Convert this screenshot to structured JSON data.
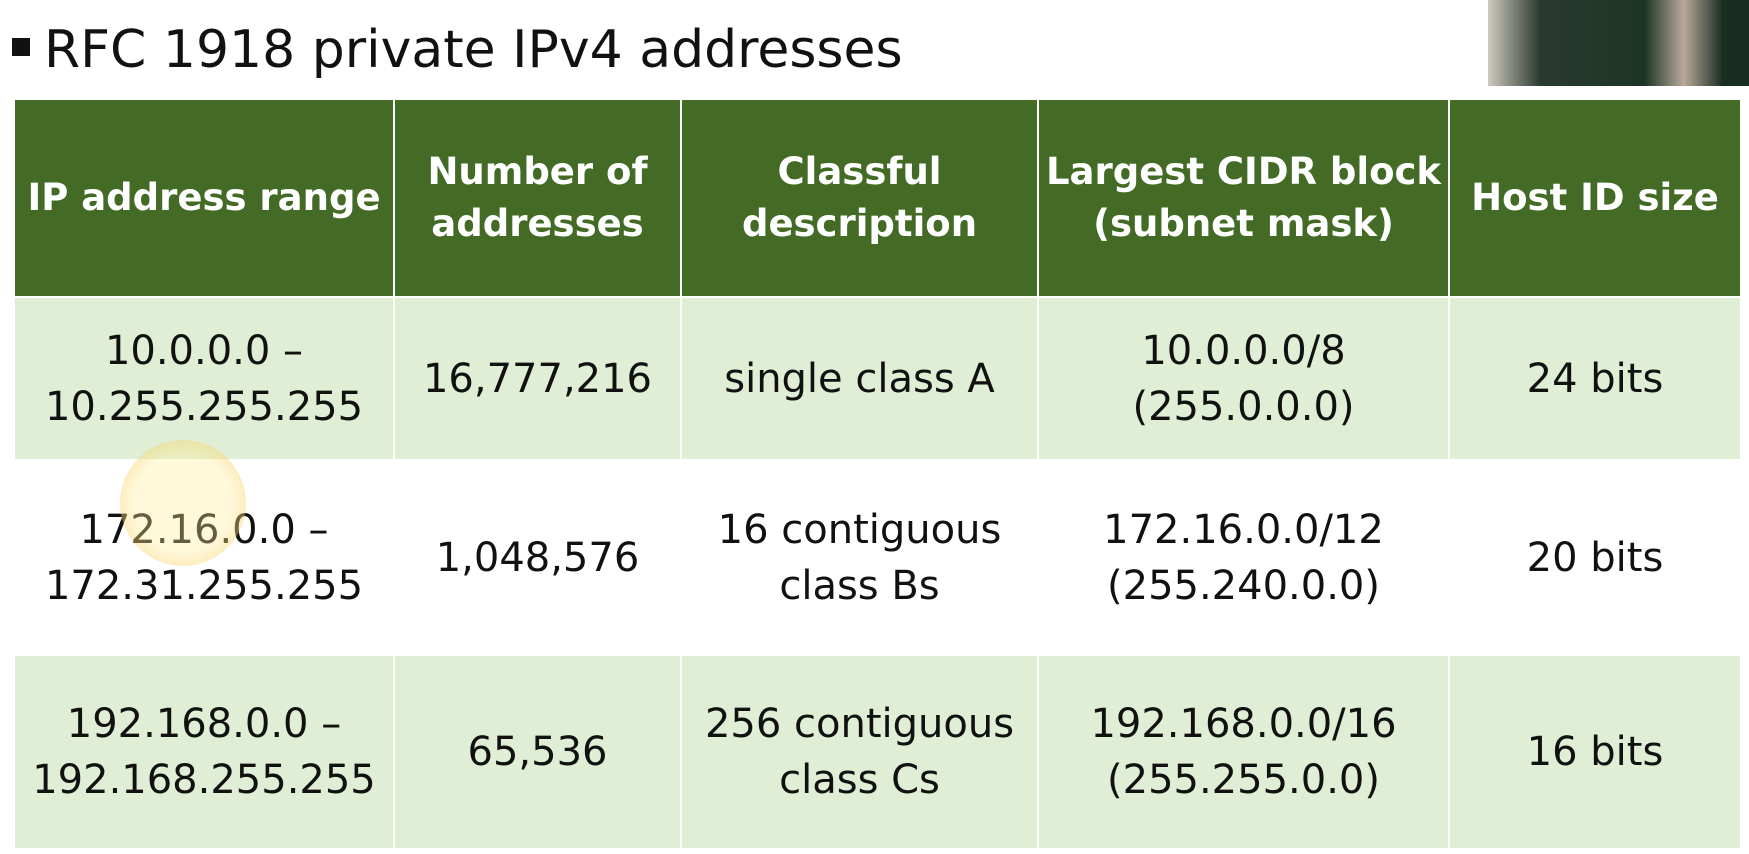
{
  "title": "RFC 1918 private IPv4 addresses",
  "table": {
    "headers": [
      [
        "IP address range"
      ],
      [
        "Number of",
        "addresses"
      ],
      [
        "Classful",
        "description"
      ],
      [
        "Largest CIDR block",
        "(subnet mask)"
      ],
      [
        "Host ID size"
      ]
    ],
    "rows": [
      [
        [
          "10.0.0.0 –",
          "10.255.255.255"
        ],
        [
          "16,777,216"
        ],
        [
          "single class A"
        ],
        [
          "10.0.0.0/8",
          "(255.0.0.0)"
        ],
        [
          "24 bits"
        ]
      ],
      [
        [
          "172.16.0.0 –",
          "172.31.255.255"
        ],
        [
          "1,048,576"
        ],
        [
          "16 contiguous",
          "class Bs"
        ],
        [
          "172.16.0.0/12",
          "(255.240.0.0)"
        ],
        [
          "20 bits"
        ]
      ],
      [
        [
          "192.168.0.0 –",
          "192.168.255.255"
        ],
        [
          "65,536"
        ],
        [
          "256 contiguous",
          "class Cs"
        ],
        [
          "192.168.0.0/16",
          "(255.255.0.0)"
        ],
        [
          "16 bits"
        ]
      ]
    ]
  }
}
